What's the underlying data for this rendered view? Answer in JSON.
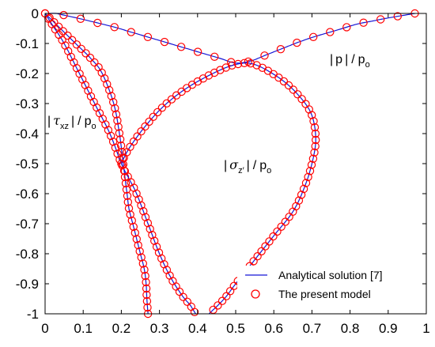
{
  "chart_data": {
    "type": "line",
    "xlim": [
      0,
      1
    ],
    "ylim": [
      -1,
      0
    ],
    "x_ticks": [
      "0",
      "0.1",
      "0.2",
      "0.3",
      "0.4",
      "0.5",
      "0.6",
      "0.7",
      "0.8",
      "0.9",
      "1"
    ],
    "y_ticks": [
      "0",
      "-0.1",
      "-0.2",
      "-0.3",
      "-0.4",
      "-0.5",
      "-0.6",
      "-0.7",
      "-0.8",
      "-0.9",
      "-1"
    ],
    "grid": false,
    "legend": {
      "placement": "bottom-right",
      "entries": [
        "Analytical solution [7]",
        "The present model"
      ]
    },
    "colors": {
      "line": "#1515d6",
      "marker": "#ff0000"
    },
    "annotations": {
      "p": {
        "abs_open": "|",
        "sym": "p",
        "abs_close": "|",
        "slash": "/",
        "p0": "p",
        "p0_sub": "o"
      },
      "tau": {
        "abs_open": "|",
        "sym": "τ",
        "sub": "xz",
        "abs_close": "|",
        "slash": "/",
        "p0": "p",
        "p0_sub": "o"
      },
      "sigma": {
        "abs_open": "|",
        "sym": "σ",
        "sub": "z′",
        "abs_close": "|",
        "slash": "/",
        "p0": "p",
        "p0_sub": "o"
      }
    },
    "series": [
      {
        "label_ref": "annotations.p",
        "x": [
          0.97,
          0.9,
          0.86,
          0.82,
          0.78,
          0.74,
          0.7,
          0.66,
          0.62,
          0.58,
          0.54,
          0.5,
          0.46,
          0.42,
          0.38,
          0.34,
          0.3,
          0.26,
          0.22,
          0.18,
          0.1,
          0.04,
          0.03,
          0.01
        ],
        "y": [
          0.0,
          -0.015,
          -0.025,
          -0.035,
          -0.05,
          -0.065,
          -0.08,
          -0.098,
          -0.118,
          -0.138,
          -0.158,
          -0.165,
          -0.15,
          -0.135,
          -0.12,
          -0.105,
          -0.09,
          -0.075,
          -0.06,
          -0.045,
          -0.02,
          -0.003,
          0.0,
          0.0
        ]
      },
      {
        "label_ref": "annotations.tau",
        "x": [
          0.0,
          0.04,
          0.08,
          0.12,
          0.15,
          0.18,
          0.195,
          0.205,
          0.21,
          0.215,
          0.22,
          0.23,
          0.24,
          0.25,
          0.26,
          0.265,
          0.267,
          0.27
        ],
        "y": [
          0.0,
          -0.05,
          -0.1,
          -0.15,
          -0.2,
          -0.3,
          -0.4,
          -0.5,
          -0.55,
          -0.6,
          -0.65,
          -0.7,
          -0.75,
          -0.8,
          -0.85,
          -0.9,
          -0.95,
          -1.0
        ]
      },
      {
        "label_ref": "annotations.sigma",
        "x": [
          0.0,
          0.02,
          0.05,
          0.09,
          0.13,
          0.17,
          0.2,
          0.22,
          0.24,
          0.27,
          0.3,
          0.33,
          0.36,
          0.38,
          0.39,
          0.395
        ],
        "y": [
          0.0,
          -0.04,
          -0.1,
          -0.2,
          -0.3,
          -0.4,
          -0.5,
          -0.55,
          -0.6,
          -0.7,
          -0.8,
          -0.88,
          -0.94,
          -0.97,
          -0.99,
          -1.0
        ]
      },
      {
        "label_ref": "annotations.sigma",
        "x": [
          0.2,
          0.22,
          0.26,
          0.31,
          0.37,
          0.44,
          0.5,
          0.55,
          0.62,
          0.67,
          0.7,
          0.71,
          0.7,
          0.68,
          0.65,
          0.6,
          0.55,
          0.5,
          0.47,
          0.43
        ],
        "y": [
          -0.5,
          -0.45,
          -0.38,
          -0.31,
          -0.25,
          -0.2,
          -0.17,
          -0.17,
          -0.22,
          -0.28,
          -0.34,
          -0.42,
          -0.5,
          -0.58,
          -0.66,
          -0.74,
          -0.82,
          -0.9,
          -0.95,
          -1.0
        ]
      }
    ]
  }
}
